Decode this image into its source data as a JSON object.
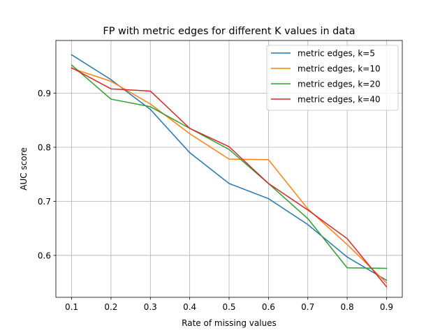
{
  "chart_data": {
    "type": "line",
    "title": "FP with metric edges for different K values in data",
    "xlabel": "Rate of missing values",
    "ylabel": "AUC score",
    "x": [
      0.1,
      0.2,
      0.3,
      0.4,
      0.5,
      0.6,
      0.7,
      0.8,
      0.9
    ],
    "xlim": [
      0.06,
      0.94
    ],
    "ylim": [
      0.5225,
      0.9975
    ],
    "xticks": [
      "0.1",
      "0.2",
      "0.3",
      "0.4",
      "0.5",
      "0.6",
      "0.7",
      "0.8",
      "0.9"
    ],
    "yticks": [
      "0.6",
      "0.7",
      "0.8",
      "0.9"
    ],
    "grid": true,
    "legend_position": "top-right",
    "series": [
      {
        "name": "metric edges, k=5",
        "color": "#1f77b4",
        "values": [
          0.971,
          0.925,
          0.87,
          0.79,
          0.733,
          0.705,
          0.657,
          0.597,
          0.554
        ]
      },
      {
        "name": "metric edges, k=10",
        "color": "#ff7f0e",
        "values": [
          0.946,
          0.922,
          0.88,
          0.825,
          0.778,
          0.777,
          0.686,
          0.62,
          0.549
        ]
      },
      {
        "name": "metric edges, k=20",
        "color": "#2ca02c",
        "values": [
          0.952,
          0.889,
          0.875,
          0.835,
          0.796,
          0.733,
          0.668,
          0.577,
          0.576
        ]
      },
      {
        "name": "metric edges, k=40",
        "color": "#d62728",
        "values": [
          0.947,
          0.908,
          0.904,
          0.835,
          0.801,
          0.733,
          0.684,
          0.631,
          0.542
        ]
      }
    ]
  }
}
